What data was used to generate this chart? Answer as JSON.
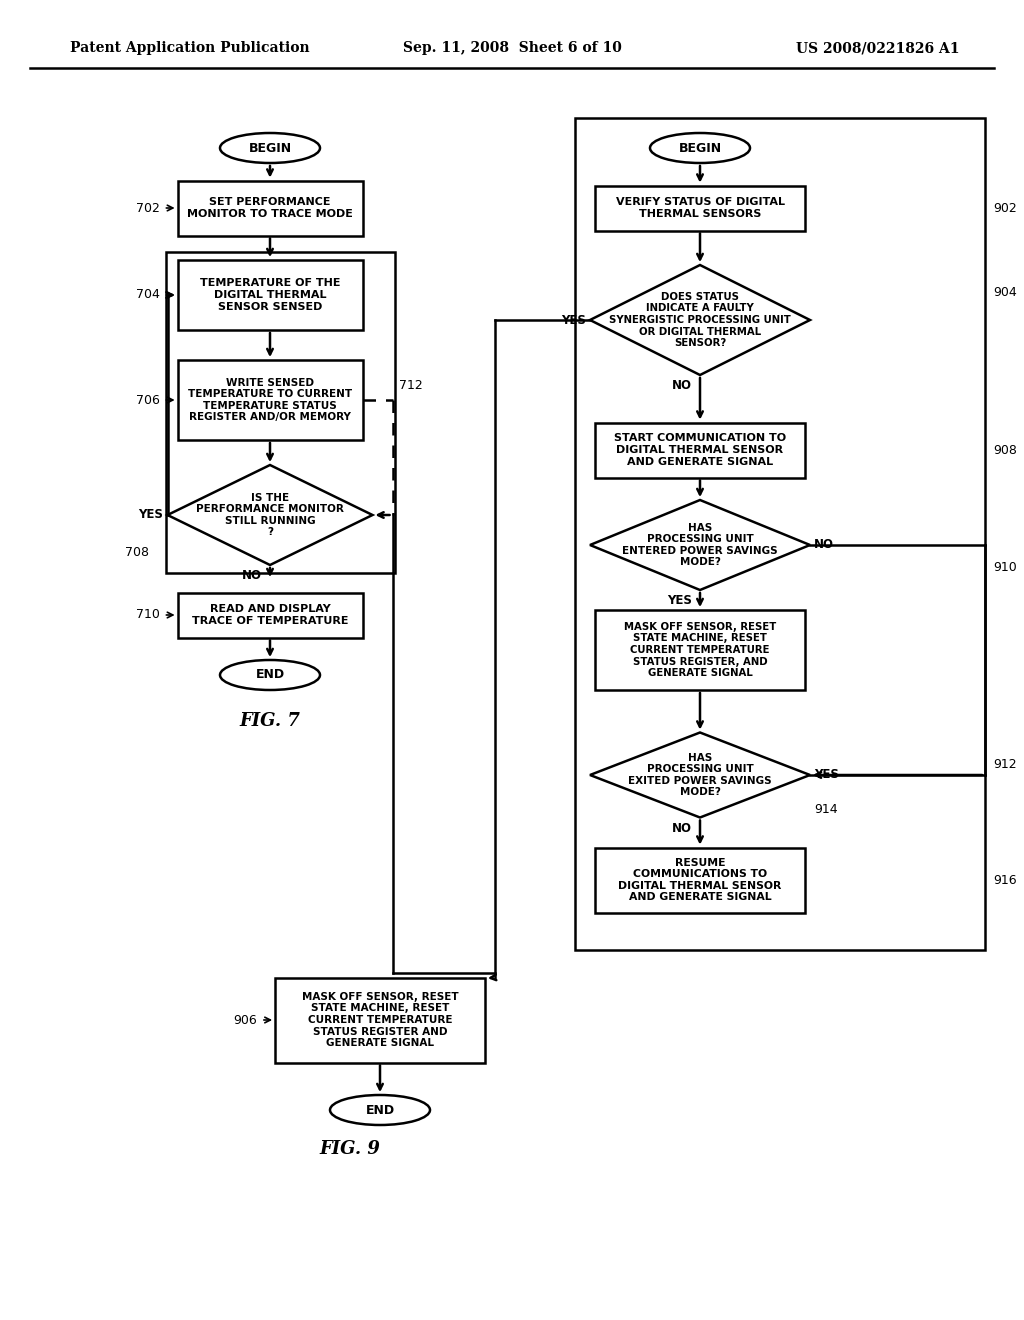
{
  "header_left": "Patent Application Publication",
  "header_mid": "Sep. 11, 2008  Sheet 6 of 10",
  "header_right": "US 2008/0221826 A1",
  "bg_color": "#ffffff"
}
